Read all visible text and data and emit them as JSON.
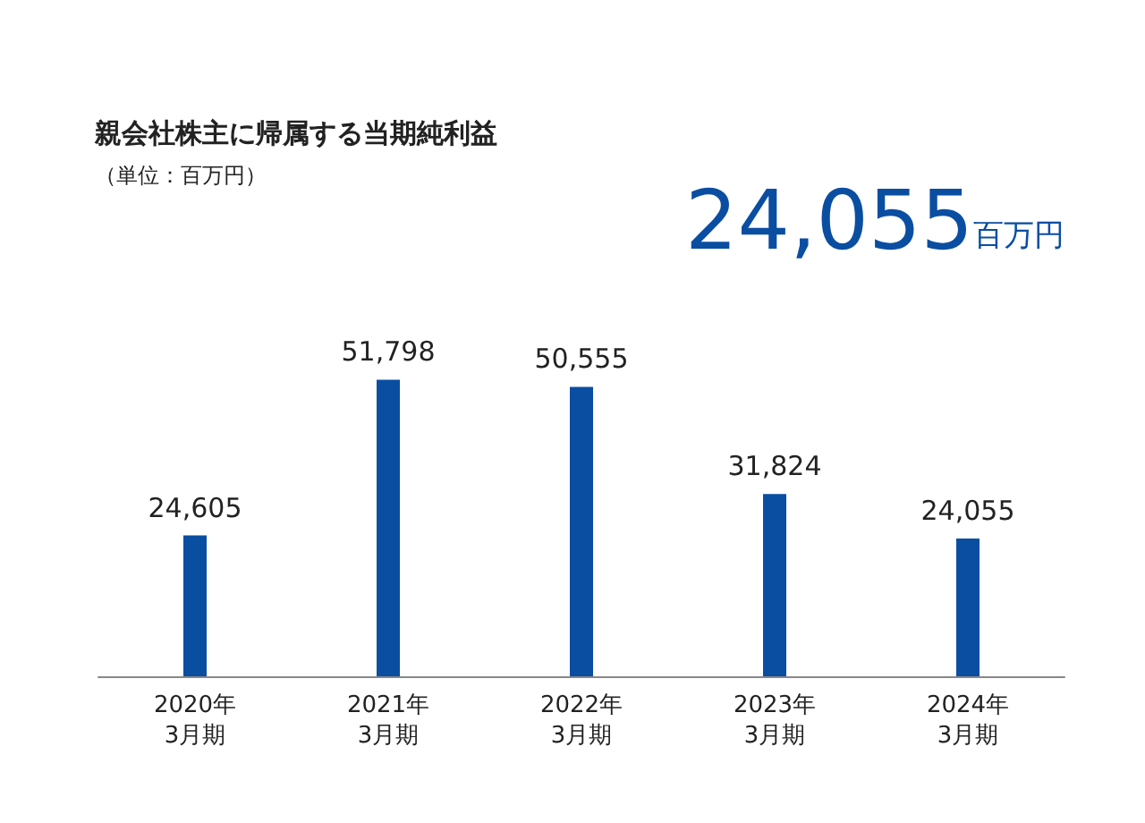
{
  "chart_data": {
    "type": "bar",
    "title": "親会社株主に帰属する当期純利益",
    "subtitle": "（単位：百万円）",
    "annotations": [
      "24,055百万円"
    ],
    "categories": [
      "2020年\n3月期",
      "2021年\n3月期",
      "2022年\n3月期",
      "2023年\n3月期",
      "2024年\n3月期"
    ],
    "values": [
      24605,
      51798,
      50555,
      31824,
      24055
    ],
    "value_labels": [
      "24,605",
      "51,798",
      "50,555",
      "31,824",
      "24,055"
    ],
    "color": "#0a4ea2"
  }
}
